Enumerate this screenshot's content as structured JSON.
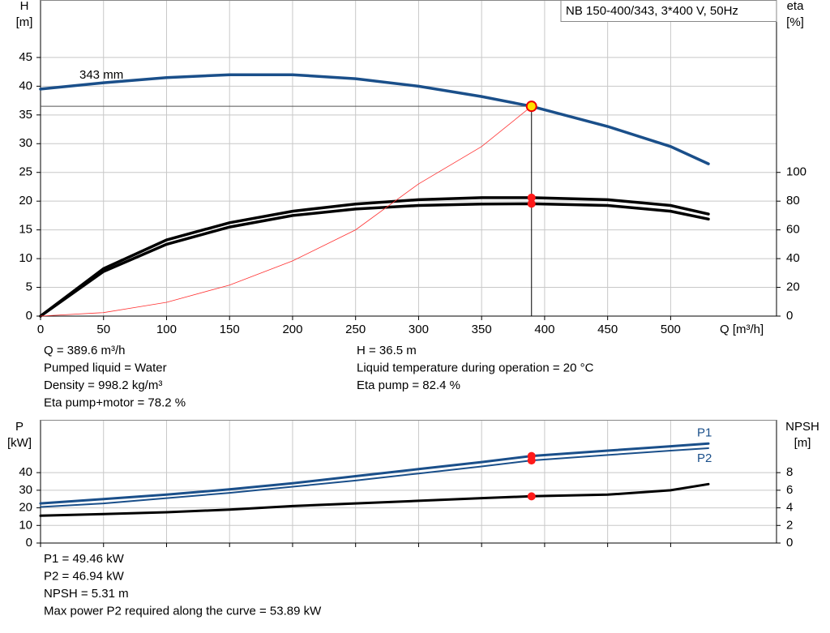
{
  "chart_data": [
    {
      "type": "line",
      "title": "NB 150-400/343, 3*400 V, 50Hz",
      "y_label": "H",
      "y_unit": "[m]",
      "y2_label": "eta",
      "y2_unit": "[%]",
      "x_label": "Q [m³/h]",
      "annotation": "343 mm",
      "xlim": [
        0,
        584
      ],
      "xticks": [
        0,
        50,
        100,
        150,
        200,
        250,
        300,
        350,
        400,
        450,
        500
      ],
      "ylim": [
        0,
        55
      ],
      "yticks": [
        0,
        5,
        10,
        15,
        20,
        25,
        30,
        35,
        40,
        45
      ],
      "y2lim": [
        0,
        220
      ],
      "y2ticks": [
        0,
        20,
        40,
        60,
        80,
        100
      ],
      "grid": true,
      "operating_q": 389.6,
      "x": [
        0,
        50,
        100,
        150,
        200,
        250,
        300,
        350,
        389.6,
        450,
        500,
        530
      ],
      "series": [
        {
          "color": "#1a4f8a",
          "width": 3.5,
          "point_color": "#ffe000",
          "values": [
            39.5,
            40.6,
            41.5,
            42,
            42,
            41.3,
            40,
            38.2,
            36.5,
            33,
            29.5,
            26.5
          ]
        },
        {
          "color": "#000000",
          "width": 3.5,
          "axis": "y2",
          "point_color": "#ff1a1a",
          "values": [
            0,
            33,
            53,
            65,
            73,
            78,
            81,
            82.4,
            82.4,
            81,
            77,
            71
          ]
        },
        {
          "color": "#000000",
          "width": 3.5,
          "axis": "y2",
          "point_color": "#ff1a1a",
          "values": [
            0,
            31,
            50,
            62,
            70,
            74.5,
            77,
            78,
            78.2,
            77,
            73,
            67.5
          ]
        },
        {
          "color": "#ff3030",
          "width": 0.8,
          "values": [
            0,
            0.6,
            2.4,
            5.4,
            9.6,
            15,
            23,
            29.5,
            36.5,
            null,
            null,
            null
          ]
        }
      ],
      "readouts_left": [
        "Q = 389.6 m³/h",
        "Pumped liquid = Water",
        "Density = 998.2 kg/m³",
        "Eta pump+motor = 78.2 %"
      ],
      "readouts_right": [
        "H = 36.5 m",
        "Liquid temperature during operation = 20 °C",
        "Eta pump = 82.4 %"
      ]
    },
    {
      "type": "line",
      "y_label": "P",
      "y_unit": "[kW]",
      "y2_label": "NPSH",
      "y2_unit": "[m]",
      "xlim": [
        0,
        584
      ],
      "xticks": [
        0,
        50,
        100,
        150,
        200,
        250,
        300,
        350,
        400,
        450,
        500
      ],
      "ylim": [
        0,
        70
      ],
      "yticks": [
        0,
        10,
        20,
        30,
        40
      ],
      "y2lim": [
        0,
        14
      ],
      "y2ticks": [
        0,
        2,
        4,
        6,
        8
      ],
      "grid": true,
      "operating_q": 389.6,
      "x": [
        0,
        50,
        100,
        150,
        200,
        250,
        300,
        350,
        389.6,
        450,
        500,
        530
      ],
      "series": [
        {
          "name": "P1",
          "color": "#1a4f8a",
          "width": 3,
          "point_color": "#ff1a1a",
          "values": [
            22.5,
            25,
            27.5,
            30.5,
            34,
            38,
            42,
            46,
            49.46,
            52.5,
            55,
            56.5
          ]
        },
        {
          "name": "P2",
          "color": "#1a4f8a",
          "width": 2,
          "point_color": "#ff1a1a",
          "values": [
            20.5,
            22.5,
            25.5,
            28.5,
            32,
            35.5,
            39.5,
            43.5,
            46.94,
            50,
            52.5,
            53.89
          ]
        },
        {
          "color": "#000000",
          "width": 3,
          "axis": "y2",
          "point_color": "#ff1a1a",
          "values": [
            3.1,
            3.3,
            3.5,
            3.8,
            4.2,
            4.5,
            4.8,
            5.1,
            5.31,
            5.5,
            6.0,
            6.7
          ]
        }
      ],
      "readouts_left": [
        "P1 = 49.46 kW",
        "P2 = 46.94 kW",
        "NPSH = 5.31 m",
        "Max power P2 required along the curve = 53.89 kW"
      ]
    }
  ]
}
